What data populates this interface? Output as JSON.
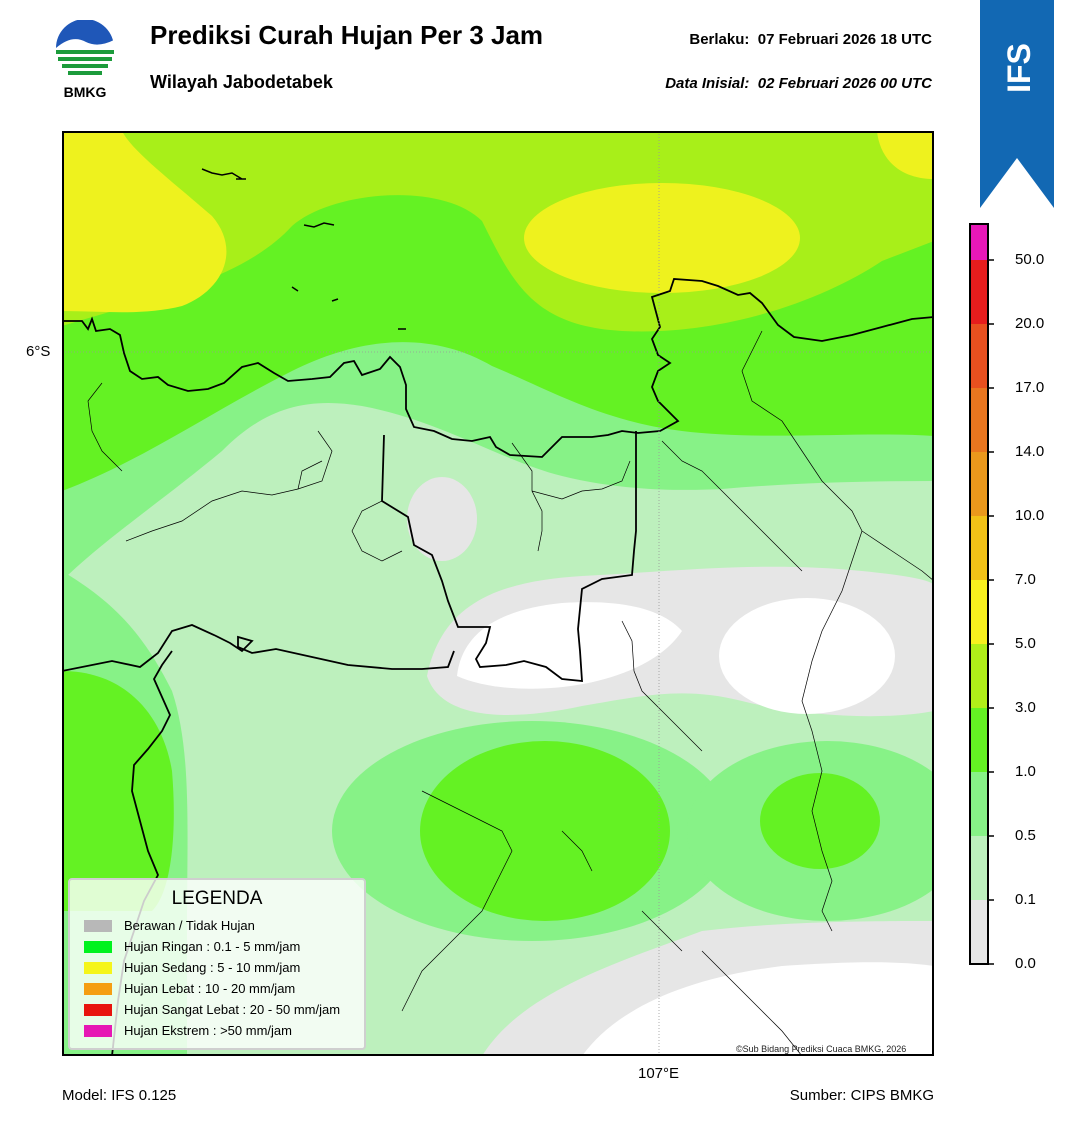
{
  "header": {
    "logo_text": "BMKG",
    "title": "Prediksi Curah Hujan Per 3 Jam",
    "subtitle": "Wilayah Jabodetabek",
    "valid_label": "Berlaku:",
    "valid_value": "07 Februari 2026 18 UTC",
    "init_label": "Data Inisial:",
    "init_value": "02 Februari 2026 00 UTC",
    "badge": "IFS"
  },
  "map": {
    "lat_label": "6°S",
    "lon_label": "107°E",
    "copyright": "©Sub Bidang Prediksi Cuaca BMKG, 2026",
    "colors": {
      "none": "#e6e6e6",
      "r01": "#bdf0bd",
      "r05": "#87f287",
      "r1": "#64f223",
      "r3": "#a8ef19",
      "r5": "#eef21e",
      "r7": "#ffffff"
    }
  },
  "legend": {
    "title": "LEGENDA",
    "items": [
      {
        "label": "Berawan / Tidak Hujan",
        "color": "#b8b8b8"
      },
      {
        "label": "Hujan Ringan : 0.1 - 5 mm/jam",
        "color": "#00f21e"
      },
      {
        "label": "Hujan Sedang : 5 - 10 mm/jam",
        "color": "#f5f51a"
      },
      {
        "label": "Hujan Lebat : 10 - 20 mm/jam",
        "color": "#f59e12"
      },
      {
        "label": "Hujan Sangat Lebat : 20 - 50 mm/jam",
        "color": "#e8140e"
      },
      {
        "label": "Hujan Ekstrem : >50 mm/jam",
        "color": "#e618b4"
      }
    ]
  },
  "colorbar": {
    "ticks": [
      "50.0",
      "20.0",
      "17.0",
      "14.0",
      "10.0",
      "7.0",
      "5.0",
      "3.0",
      "1.0",
      "0.5",
      "0.1",
      "0.0"
    ],
    "bands": [
      "#e818b8",
      "#e61d1d",
      "#e8501f",
      "#e9761f",
      "#ea981c",
      "#f1c117",
      "#f7f01e",
      "#b0ef19",
      "#64f223",
      "#87f287",
      "#bdf0bd",
      "#e6e6e6"
    ]
  },
  "footer": {
    "model": "Model: IFS 0.125",
    "source": "Sumber: CIPS BMKG"
  }
}
